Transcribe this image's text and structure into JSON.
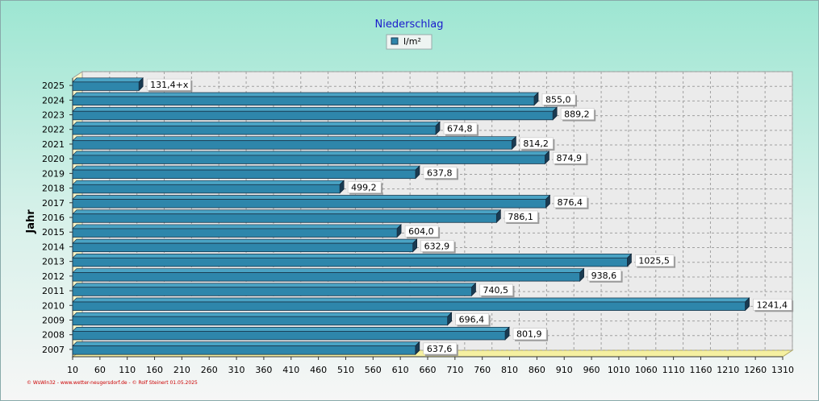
{
  "colors": {
    "bar_front": "#2e86ab",
    "bar_top": "#4aa3c4",
    "bar_side": "#1a3b52",
    "title": "#1a1acc",
    "footer": "#cc0000",
    "floor": "#f5f0a0"
  },
  "footer_text": "© WsWin32 - www.wetter-neugersdorf.de - © Rolf Steinert 01.05.2025",
  "chart_data": {
    "type": "bar",
    "orientation": "horizontal",
    "title": "Niederschlag",
    "ylabel": "Jahr",
    "xlabel": "",
    "legend": {
      "position": "top-center",
      "entries": [
        "l/m²"
      ]
    },
    "grid": true,
    "xlim": [
      10,
      1310
    ],
    "xticks": [
      10,
      60,
      110,
      160,
      210,
      260,
      310,
      360,
      410,
      460,
      510,
      560,
      610,
      660,
      710,
      760,
      810,
      860,
      910,
      960,
      1010,
      1060,
      1110,
      1160,
      1210,
      1260,
      1310
    ],
    "categories": [
      "2025",
      "2024",
      "2023",
      "2022",
      "2021",
      "2020",
      "2019",
      "2018",
      "2017",
      "2016",
      "2015",
      "2014",
      "2013",
      "2012",
      "2011",
      "2010",
      "2009",
      "2008",
      "2007"
    ],
    "series": [
      {
        "name": "l/m²",
        "values": [
          131.4,
          855.0,
          889.2,
          674.8,
          814.2,
          874.9,
          637.8,
          499.2,
          876.4,
          786.1,
          604.0,
          632.9,
          1025.5,
          938.6,
          740.5,
          1241.4,
          696.4,
          801.9,
          637.6
        ],
        "labels": [
          "131,4+x",
          "855,0",
          "889,2",
          "674,8",
          "814,2",
          "874,9",
          "637,8",
          "499,2",
          "876,4",
          "786,1",
          "604,0",
          "632,9",
          "1025,5",
          "938,6",
          "740,5",
          "1241,4",
          "696,4",
          "801,9",
          "637,6"
        ]
      }
    ]
  }
}
